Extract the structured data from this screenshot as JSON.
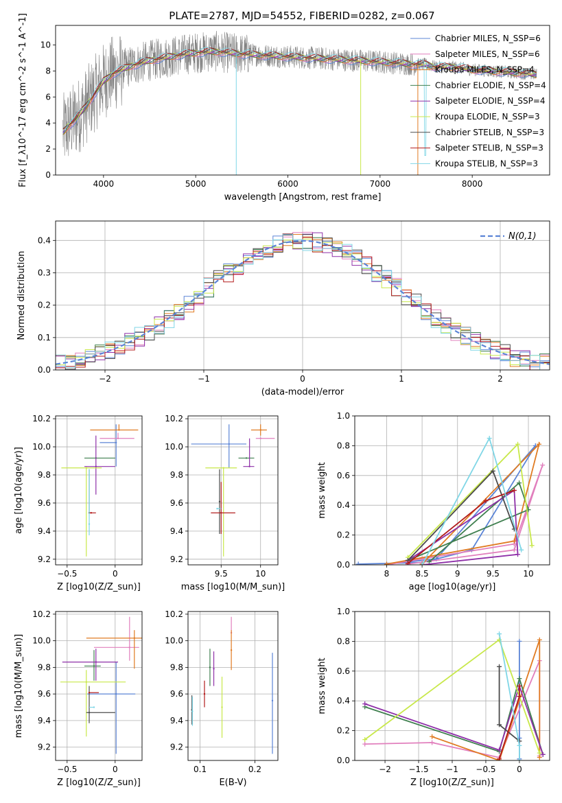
{
  "title": "PLATE=2787, MJD=54552, FIBERID=0282, z=0.067",
  "colors": {
    "chabrier_miles": "#5b84d6",
    "salpeter_miles": "#e17fbd",
    "kroupa_miles": "#e07b22",
    "chabrier_elodie": "#3f7f4f",
    "salpeter_elodie": "#8e2fa8",
    "kroupa_elodie": "#c8e84a",
    "chabrier_stelib": "#4b4b4b",
    "salpeter_stelib": "#b31b1b",
    "kroupa_stelib": "#7fd6e6",
    "data": "#808080"
  },
  "chart_data": [
    {
      "id": "spectrum",
      "type": "line",
      "xlabel": "wavelength [Angstrom, rest frame]",
      "ylabel": "Flux [f_λ10^-17 erg cm^-2 s^-1 A^-1]",
      "xlim": [
        3480,
        8840
      ],
      "ylim": [
        0,
        11.5
      ],
      "xticks": [
        4000,
        5000,
        6000,
        7000,
        8000
      ],
      "yticks": [
        0,
        2,
        4,
        6,
        8,
        10
      ],
      "legend_position": "upper-right",
      "legend": [
        "Chabrier MILES, N_SSP=6",
        "Salpeter MILES, N_SSP=6",
        "Kroupa MILES, N_SSP=4",
        "Chabrier ELODIE, N_SSP=4",
        "Salpeter ELODIE, N_SSP=4",
        "Kroupa ELODIE, N_SSP=3",
        "Chabrier STELIB, N_SSP=3",
        "Salpeter STELIB, N_SSP=3",
        "Kroupa STELIB, N_SSP=3"
      ],
      "continuum": {
        "x": [
          3560,
          3620,
          3700,
          3800,
          3900,
          4000,
          4100,
          4300,
          4500,
          4800,
          5000,
          5200,
          5500,
          6000,
          6500,
          7000,
          7200,
          7400,
          7500,
          7600,
          7800,
          8000,
          8200,
          8400,
          8600,
          8700
        ],
        "y": [
          3.3,
          3.8,
          4.3,
          5.2,
          6.2,
          7.2,
          7.8,
          8.4,
          8.8,
          9.2,
          9.4,
          9.5,
          9.3,
          9.1,
          8.9,
          8.7,
          8.6,
          8.5,
          8.5,
          8.3,
          8.3,
          8.1,
          8.0,
          7.9,
          7.8,
          7.7
        ]
      }
    },
    {
      "id": "residuals",
      "type": "histogram",
      "xlabel": "(data-model)/error",
      "ylabel": "Normed distribution",
      "xlim": [
        -2.5,
        2.5
      ],
      "ylim": [
        0,
        0.46
      ],
      "xticks": [
        -2,
        -1,
        0,
        1,
        2
      ],
      "yticks": [
        0.0,
        0.1,
        0.2,
        0.3,
        0.4
      ],
      "legend": [
        "N(0,1)"
      ],
      "legend_position": "upper-right",
      "bin_width": 0.1
    },
    {
      "id": "age_vs_Z",
      "type": "errorbar",
      "xlabel": "Z [log10(Z/Z_sun)]",
      "ylabel": "age [log10(age/yr)]",
      "xlim": [
        -0.62,
        0.28
      ],
      "ylim": [
        9.16,
        10.22
      ],
      "xticks": [
        -0.5,
        0.0
      ],
      "yticks": [
        9.2,
        9.4,
        9.6,
        9.8,
        10.0,
        10.2
      ],
      "points": [
        {
          "model": "chabrier_miles",
          "x": 0.01,
          "xerr": [
            0.17,
            0.0
          ],
          "y": 10.03,
          "yerr": [
            0.17,
            0.13
          ]
        },
        {
          "model": "salpeter_miles",
          "x": 0.03,
          "xerr": [
            0.19,
            0.17
          ],
          "y": 10.06,
          "yerr": [
            0.0,
            0.04
          ]
        },
        {
          "model": "kroupa_miles",
          "x": 0.04,
          "xerr": [
            0.3,
            0.2
          ],
          "y": 10.12,
          "yerr": [
            0.0,
            0.04
          ]
        },
        {
          "model": "chabrier_elodie",
          "x": -0.2,
          "xerr": [
            0.12,
            0.2
          ],
          "y": 9.92,
          "yerr": [
            0.0,
            0.0
          ]
        },
        {
          "model": "salpeter_elodie",
          "x": -0.2,
          "xerr": [
            0.12,
            0.2
          ],
          "y": 9.86,
          "yerr": [
            0.2,
            0.22
          ]
        },
        {
          "model": "kroupa_elodie",
          "x": -0.3,
          "xerr": [
            0.26,
            0.16
          ],
          "y": 9.85,
          "yerr": [
            0.63,
            0.0
          ]
        },
        {
          "model": "chabrier_stelib",
          "x": -0.27,
          "xerr": [
            0.0,
            0.0
          ],
          "y": 9.53,
          "yerr": [
            0.0,
            0.31
          ]
        },
        {
          "model": "salpeter_stelib",
          "x": -0.25,
          "xerr": [
            0.02,
            0.05
          ],
          "y": 9.53,
          "yerr": [
            0.0,
            0.0
          ]
        },
        {
          "model": "kroupa_stelib",
          "x": -0.27,
          "xerr": [
            0.0,
            0.0
          ],
          "y": 9.45,
          "yerr": [
            0.08,
            0.39
          ]
        }
      ]
    },
    {
      "id": "age_vs_mass",
      "type": "errorbar",
      "xlabel": "mass [log10(M/M_sun)]",
      "ylabel": "",
      "xlim": [
        9.08,
        10.22
      ],
      "ylim": [
        9.16,
        10.22
      ],
      "xticks": [
        9.5,
        10.0
      ],
      "yticks": [
        9.2,
        9.4,
        9.6,
        9.8,
        10.0,
        10.2
      ],
      "points": [
        {
          "model": "chabrier_miles",
          "x": 9.6,
          "xerr": [
            0.48,
            0.22
          ],
          "y": 10.02,
          "yerr": [
            0.17,
            0.14
          ]
        },
        {
          "model": "salpeter_miles",
          "x": 10.0,
          "xerr": [
            0.06,
            0.18
          ],
          "y": 10.06,
          "yerr": [
            0.0,
            0.0
          ]
        },
        {
          "model": "kroupa_miles",
          "x": 10.0,
          "xerr": [
            0.12,
            0.08
          ],
          "y": 10.12,
          "yerr": [
            0.04,
            0.04
          ]
        },
        {
          "model": "chabrier_elodie",
          "x": 9.82,
          "xerr": [
            0.1,
            0.1
          ],
          "y": 9.92,
          "yerr": [
            0.0,
            0.0
          ]
        },
        {
          "model": "salpeter_elodie",
          "x": 9.86,
          "xerr": [
            0.08,
            0.06
          ],
          "y": 9.86,
          "yerr": [
            0.0,
            0.2
          ]
        },
        {
          "model": "kroupa_elodie",
          "x": 9.53,
          "xerr": [
            0.23,
            0.17
          ],
          "y": 9.85,
          "yerr": [
            0.63,
            0.0
          ]
        },
        {
          "model": "chabrier_stelib",
          "x": 9.48,
          "xerr": [
            0.0,
            0.0
          ],
          "y": 9.61,
          "yerr": [
            0.23,
            0.23
          ]
        },
        {
          "model": "salpeter_stelib",
          "x": 9.5,
          "xerr": [
            0.13,
            0.18
          ],
          "y": 9.53,
          "yerr": [
            0.15,
            0.22
          ]
        },
        {
          "model": "kroupa_stelib",
          "x": 9.45,
          "xerr": [
            0.0,
            0.05
          ],
          "y": 9.56,
          "yerr": [
            0.0,
            0.0
          ]
        }
      ]
    },
    {
      "id": "weight_vs_age",
      "type": "line",
      "xlabel": "age [log10(age/yr)]",
      "ylabel": "mass weight",
      "xlim": [
        7.55,
        10.3
      ],
      "ylim": [
        0.0,
        1.0
      ],
      "xticks": [
        8.0,
        8.5,
        9.0,
        9.5,
        10.0
      ],
      "yticks": [
        0.0,
        0.2,
        0.4,
        0.6,
        0.8,
        1.0
      ],
      "series": [
        {
          "model": "chabrier_miles",
          "x": [
            7.6,
            8.5,
            9.2,
            10.1,
            8.7,
            8.3
          ],
          "y": [
            0.005,
            0.015,
            0.1,
            0.8,
            0.04,
            0.02
          ]
        },
        {
          "model": "salpeter_miles",
          "x": [
            8.3,
            9.8,
            10.2,
            9.8,
            8.5,
            8.0
          ],
          "y": [
            0.005,
            0.1,
            0.67,
            0.14,
            0.04,
            0.0
          ]
        },
        {
          "model": "kroupa_miles",
          "x": [
            8.0,
            9.8,
            10.15,
            8.5
          ],
          "y": [
            0.005,
            0.16,
            0.81,
            0.005
          ]
        },
        {
          "model": "chabrier_elodie",
          "x": [
            8.6,
            9.87,
            10.0,
            8.3
          ],
          "y": [
            0.02,
            0.55,
            0.37,
            0.03
          ]
        },
        {
          "model": "salpeter_elodie",
          "x": [
            8.3,
            9.8,
            9.85,
            8.5
          ],
          "y": [
            0.03,
            0.5,
            0.07,
            0.0
          ]
        },
        {
          "model": "kroupa_elodie",
          "x": [
            8.3,
            9.85,
            10.05
          ],
          "y": [
            0.05,
            0.81,
            0.13
          ]
        },
        {
          "model": "chabrier_stelib",
          "x": [
            8.3,
            9.5,
            9.8
          ],
          "y": [
            0.03,
            0.63,
            0.24
          ]
        },
        {
          "model": "salpeter_stelib",
          "x": [
            8.3,
            9.4,
            9.8
          ],
          "y": [
            0.01,
            0.43,
            0.5
          ]
        },
        {
          "model": "kroupa_stelib",
          "x": [
            8.5,
            9.45,
            9.9
          ],
          "y": [
            0.0,
            0.85,
            0.1
          ]
        }
      ]
    },
    {
      "id": "mass_vs_Z",
      "type": "errorbar",
      "xlabel": "Z [log10(Z/Z_sun)]",
      "ylabel": "mass [log10(M/M_sun)]",
      "xlim": [
        -0.62,
        0.28
      ],
      "ylim": [
        9.1,
        10.22
      ],
      "xticks": [
        -0.5,
        0.0
      ],
      "yticks": [
        9.2,
        9.4,
        9.6,
        9.8,
        10.0,
        10.2
      ],
      "points": [
        {
          "model": "chabrier_miles",
          "x": 0.01,
          "xerr": [
            0.3,
            0.2
          ],
          "y": 9.6,
          "yerr": [
            0.45,
            0.24
          ]
        },
        {
          "model": "salpeter_miles",
          "x": 0.15,
          "xerr": [
            0.37,
            0.1
          ],
          "y": 9.95,
          "yerr": [
            0.1,
            0.23
          ]
        },
        {
          "model": "kroupa_miles",
          "x": 0.2,
          "xerr": [
            0.5,
            0.08
          ],
          "y": 10.02,
          "yerr": [
            0.23,
            0.06
          ]
        },
        {
          "model": "chabrier_elodie",
          "x": -0.22,
          "xerr": [
            0.1,
            0.07
          ],
          "y": 9.81,
          "yerr": [
            0.11,
            0.12
          ]
        },
        {
          "model": "salpeter_elodie",
          "x": -0.2,
          "xerr": [
            0.35,
            0.23
          ],
          "y": 9.84,
          "yerr": [
            0.14,
            0.1
          ]
        },
        {
          "model": "kroupa_elodie",
          "x": -0.3,
          "xerr": [
            0.27,
            0.41
          ],
          "y": 9.69,
          "yerr": [
            0.41,
            0.09
          ]
        },
        {
          "model": "chabrier_stelib",
          "x": -0.27,
          "xerr": [
            0.03,
            0.27
          ],
          "y": 9.46,
          "yerr": [
            0.08,
            0.2
          ]
        },
        {
          "model": "salpeter_stelib",
          "x": -0.27,
          "xerr": [
            0.0,
            0.1
          ],
          "y": 9.61,
          "yerr": [
            0.0,
            0.0
          ]
        },
        {
          "model": "kroupa_stelib",
          "x": -0.22,
          "xerr": [
            0.05,
            0.0
          ],
          "y": 9.5,
          "yerr": [
            0.0,
            0.0
          ]
        }
      ]
    },
    {
      "id": "mass_vs_ebv",
      "type": "errorbar",
      "xlabel": "E(B-V)",
      "ylabel": "",
      "xlim": [
        0.078,
        0.242
      ],
      "ylim": [
        9.1,
        10.22
      ],
      "xticks": [
        0.1,
        0.2
      ],
      "yticks": [
        9.2,
        9.4,
        9.6,
        9.8,
        10.0,
        10.2
      ],
      "points": [
        {
          "model": "chabrier_miles",
          "x": 0.232,
          "xerr": [
            0.0,
            0.0
          ],
          "y": 9.55,
          "yerr": [
            0.4,
            0.36
          ]
        },
        {
          "model": "salpeter_miles",
          "x": 0.157,
          "xerr": [
            0.0,
            0.0
          ],
          "y": 10.06,
          "yerr": [
            0.0,
            0.12
          ]
        },
        {
          "model": "kroupa_miles",
          "x": 0.157,
          "xerr": [
            0.0,
            0.0
          ],
          "y": 9.93,
          "yerr": [
            0.15,
            0.15
          ]
        },
        {
          "model": "chabrier_elodie",
          "x": 0.118,
          "xerr": [
            0.0,
            0.0
          ],
          "y": 9.8,
          "yerr": [
            0.14,
            0.14
          ]
        },
        {
          "model": "salpeter_elodie",
          "x": 0.125,
          "xerr": [
            0.0,
            0.0
          ],
          "y": 9.79,
          "yerr": [
            0.13,
            0.13
          ]
        },
        {
          "model": "kroupa_elodie",
          "x": 0.14,
          "xerr": [
            0.0,
            0.0
          ],
          "y": 9.5,
          "yerr": [
            0.23,
            0.23
          ]
        },
        {
          "model": "chabrier_stelib",
          "x": 0.085,
          "xerr": [
            0.0,
            0.0
          ],
          "y": 9.48,
          "yerr": [
            0.11,
            0.11
          ]
        },
        {
          "model": "salpeter_stelib",
          "x": 0.108,
          "xerr": [
            0.0,
            0.0
          ],
          "y": 9.6,
          "yerr": [
            0.1,
            0.1
          ]
        },
        {
          "model": "kroupa_stelib",
          "x": 0.086,
          "xerr": [
            0.0,
            0.0
          ],
          "y": 9.47,
          "yerr": [
            0.11,
            0.11
          ]
        }
      ]
    },
    {
      "id": "weight_vs_Z",
      "type": "line",
      "xlabel": "Z [log10(Z/Z_sun)]",
      "ylabel": "mass weight",
      "xlim": [
        -2.45,
        0.45
      ],
      "ylim": [
        0.0,
        1.0
      ],
      "xticks": [
        -2.0,
        -1.5,
        -1.0,
        -0.5,
        0.0
      ],
      "yticks": [
        0.0,
        0.2,
        0.4,
        0.6,
        0.8,
        1.0
      ],
      "series": [
        {
          "model": "chabrier_miles",
          "x": [
            0.0,
            0.0,
            0.0
          ],
          "y": [
            0.8,
            0.01,
            0.15
          ]
        },
        {
          "model": "salpeter_miles",
          "x": [
            -2.3,
            -1.3,
            -0.3,
            0.3,
            0.3
          ],
          "y": [
            0.11,
            0.12,
            0.02,
            0.67,
            0.03
          ]
        },
        {
          "model": "kroupa_miles",
          "x": [
            -1.3,
            -0.3,
            0.3,
            0.3
          ],
          "y": [
            0.16,
            0.0,
            0.81,
            0.02
          ]
        },
        {
          "model": "chabrier_elodie",
          "x": [
            -2.3,
            -0.3,
            0.0,
            0.35
          ],
          "y": [
            0.36,
            0.06,
            0.55,
            0.04
          ]
        },
        {
          "model": "salpeter_elodie",
          "x": [
            -2.3,
            -0.3,
            0.0,
            0.35
          ],
          "y": [
            0.38,
            0.07,
            0.5,
            0.04
          ]
        },
        {
          "model": "kroupa_elodie",
          "x": [
            -2.3,
            -0.3,
            0.3
          ],
          "y": [
            0.14,
            0.81,
            0.05
          ]
        },
        {
          "model": "chabrier_stelib",
          "x": [
            -0.3,
            -0.3,
            0.0
          ],
          "y": [
            0.63,
            0.24,
            0.13
          ]
        },
        {
          "model": "salpeter_stelib",
          "x": [
            -0.3,
            0.0,
            0.0
          ],
          "y": [
            0.01,
            0.43,
            0.5
          ]
        },
        {
          "model": "kroupa_stelib",
          "x": [
            -0.3,
            0.0,
            0.0
          ],
          "y": [
            0.85,
            0.1,
            0.0
          ]
        }
      ]
    }
  ]
}
